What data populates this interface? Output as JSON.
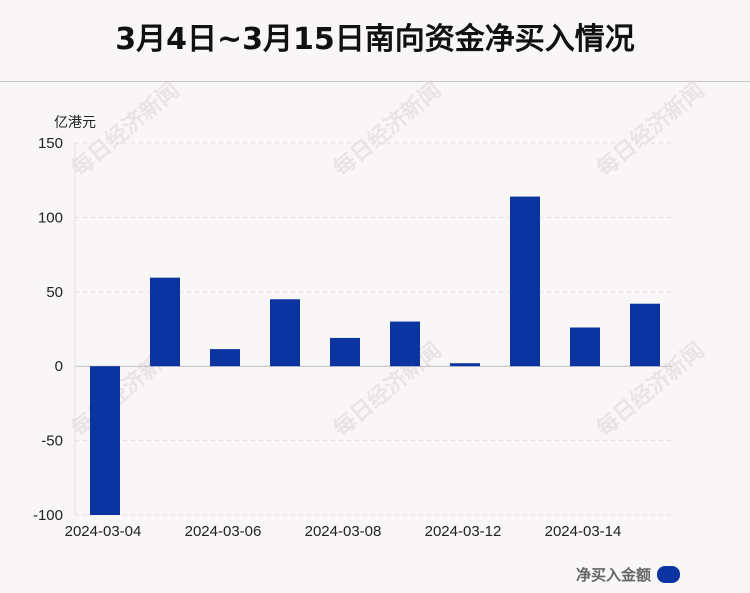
{
  "title": "3月4日~3月15日南向资金净买入情况",
  "watermark": "每日经济新闻",
  "chart_data": {
    "type": "bar",
    "unit_label": "亿港元",
    "categories": [
      "2024-03-04",
      "2024-03-05",
      "2024-03-06",
      "2024-03-07",
      "2024-03-08",
      "2024-03-11",
      "2024-03-12",
      "2024-03-13",
      "2024-03-14",
      "2024-03-15"
    ],
    "x_tick_labels": [
      "2024-03-04",
      "2024-03-06",
      "2024-03-08",
      "2024-03-12",
      "2024-03-14"
    ],
    "series": [
      {
        "name": "净买入金额",
        "values": [
          -100,
          59.5,
          11.5,
          45,
          19,
          30,
          2,
          114,
          26,
          42
        ],
        "color": "#0b34a0"
      }
    ],
    "ylim": [
      -100,
      150
    ],
    "yticks": [
      150,
      100,
      50,
      0,
      -50,
      -100
    ],
    "grid": true,
    "legend_position": "bottom-right"
  }
}
